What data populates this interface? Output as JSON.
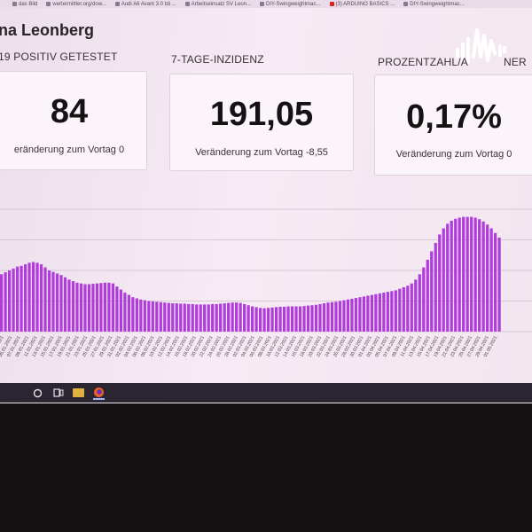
{
  "browser": {
    "bookmarks": [
      {
        "label": "das Bild",
        "icon": "bookmark-icon"
      },
      {
        "label": "wertermittler.org/dow...",
        "icon": "bookmark-icon"
      },
      {
        "label": "Audi A6 Avant 3.0 tdi ...",
        "icon": "bookmark-icon"
      },
      {
        "label": "Arbeitseinsatz SV Leon...",
        "icon": "bookmark-icon"
      },
      {
        "label": "DIY-Swingweightmac...",
        "icon": "bookmark-icon"
      },
      {
        "label": "(3) ARDUINO BASICS ...",
        "icon": "youtube-icon"
      },
      {
        "label": "DIY-Swingweightmac...",
        "icon": "bookmark-icon"
      }
    ]
  },
  "page": {
    "title": "na Leonberg"
  },
  "cards": [
    {
      "label": "19 POSITIV GETESTET",
      "value": "84",
      "delta": "eränderung zum Vortag 0"
    },
    {
      "label": "7-TAGE-INZIDENZ",
      "value": "191,05",
      "delta": "Veränderung zum Vortag -8,55"
    },
    {
      "label": "PROZENTZAHL/A",
      "label_tail": "NER",
      "value": "0,17%",
      "delta": "Veränderung zum Vortag 0"
    }
  ],
  "chart_data": {
    "type": "bar",
    "color": "#b03cdc",
    "x_tick_labels": [
      "03.01.2021",
      "05.01.2021",
      "07.01.2021",
      "09.01.2021",
      "11.01.2021",
      "13.01.2021",
      "15.01.2021",
      "17.01.2021",
      "19.01.2021",
      "21.01.2021",
      "23.01.2021",
      "25.01.2021",
      "27.01.2021",
      "29.01.2021",
      "31.01.2021",
      "02.02.2021",
      "04.02.2021",
      "06.02.2021",
      "08.02.2021",
      "10.02.2021",
      "12.02.2021",
      "14.02.2021",
      "16.02.2021",
      "18.02.2021",
      "20.02.2021",
      "22.02.2021",
      "24.02.2021",
      "26.02.2021",
      "28.02.2021",
      "02.03.2021",
      "04.03.2021",
      "06.03.2021",
      "08.03.2021",
      "10.03.2021",
      "12.03.2021",
      "14.03.2021",
      "16.03.2021",
      "18.03.2021",
      "20.03.2021",
      "22.03.2021",
      "24.03.2021",
      "26.03.2021",
      "28.03.2021",
      "30.03.2021",
      "01.04.2021",
      "03.04.2021",
      "05.04.2021",
      "07.04.2021",
      "09.04.2021",
      "11.04.2021",
      "13.04.2021",
      "15.04.2021",
      "17.04.2021",
      "19.04.2021",
      "21.04.2021",
      "23.04.2021",
      "25.04.2021",
      "27.04.2021",
      "29.04.2021",
      "01.05.2021"
    ],
    "values": [
      150,
      155,
      160,
      165,
      170,
      172,
      176,
      180,
      182,
      180,
      176,
      168,
      160,
      156,
      152,
      148,
      142,
      136,
      132,
      128,
      126,
      124,
      124,
      125,
      126,
      127,
      128,
      128,
      126,
      118,
      110,
      102,
      96,
      90,
      87,
      84,
      82,
      80,
      79,
      78,
      77,
      76,
      75,
      74,
      74,
      73,
      73,
      72,
      72,
      71,
      71,
      71,
      71,
      72,
      72,
      73,
      74,
      75,
      76,
      76,
      75,
      72,
      69,
      66,
      64,
      62,
      61,
      62,
      63,
      64,
      65,
      65,
      66,
      66,
      66,
      66,
      67,
      68,
      69,
      70,
      72,
      74,
      76,
      77,
      78,
      80,
      82,
      84,
      86,
      88,
      90,
      92,
      94,
      96,
      98,
      100,
      102,
      104,
      106,
      108,
      112,
      116,
      120,
      126,
      136,
      150,
      168,
      188,
      210,
      232,
      254,
      270,
      282,
      290,
      295,
      298,
      300,
      300,
      300,
      298,
      294,
      288,
      280,
      270,
      258,
      246
    ],
    "ylim": [
      0,
      320
    ],
    "grid": true
  },
  "taskbar": {
    "icons": [
      "cortana-icon",
      "task-view-icon",
      "file-explorer-icon",
      "firefox-icon"
    ]
  }
}
